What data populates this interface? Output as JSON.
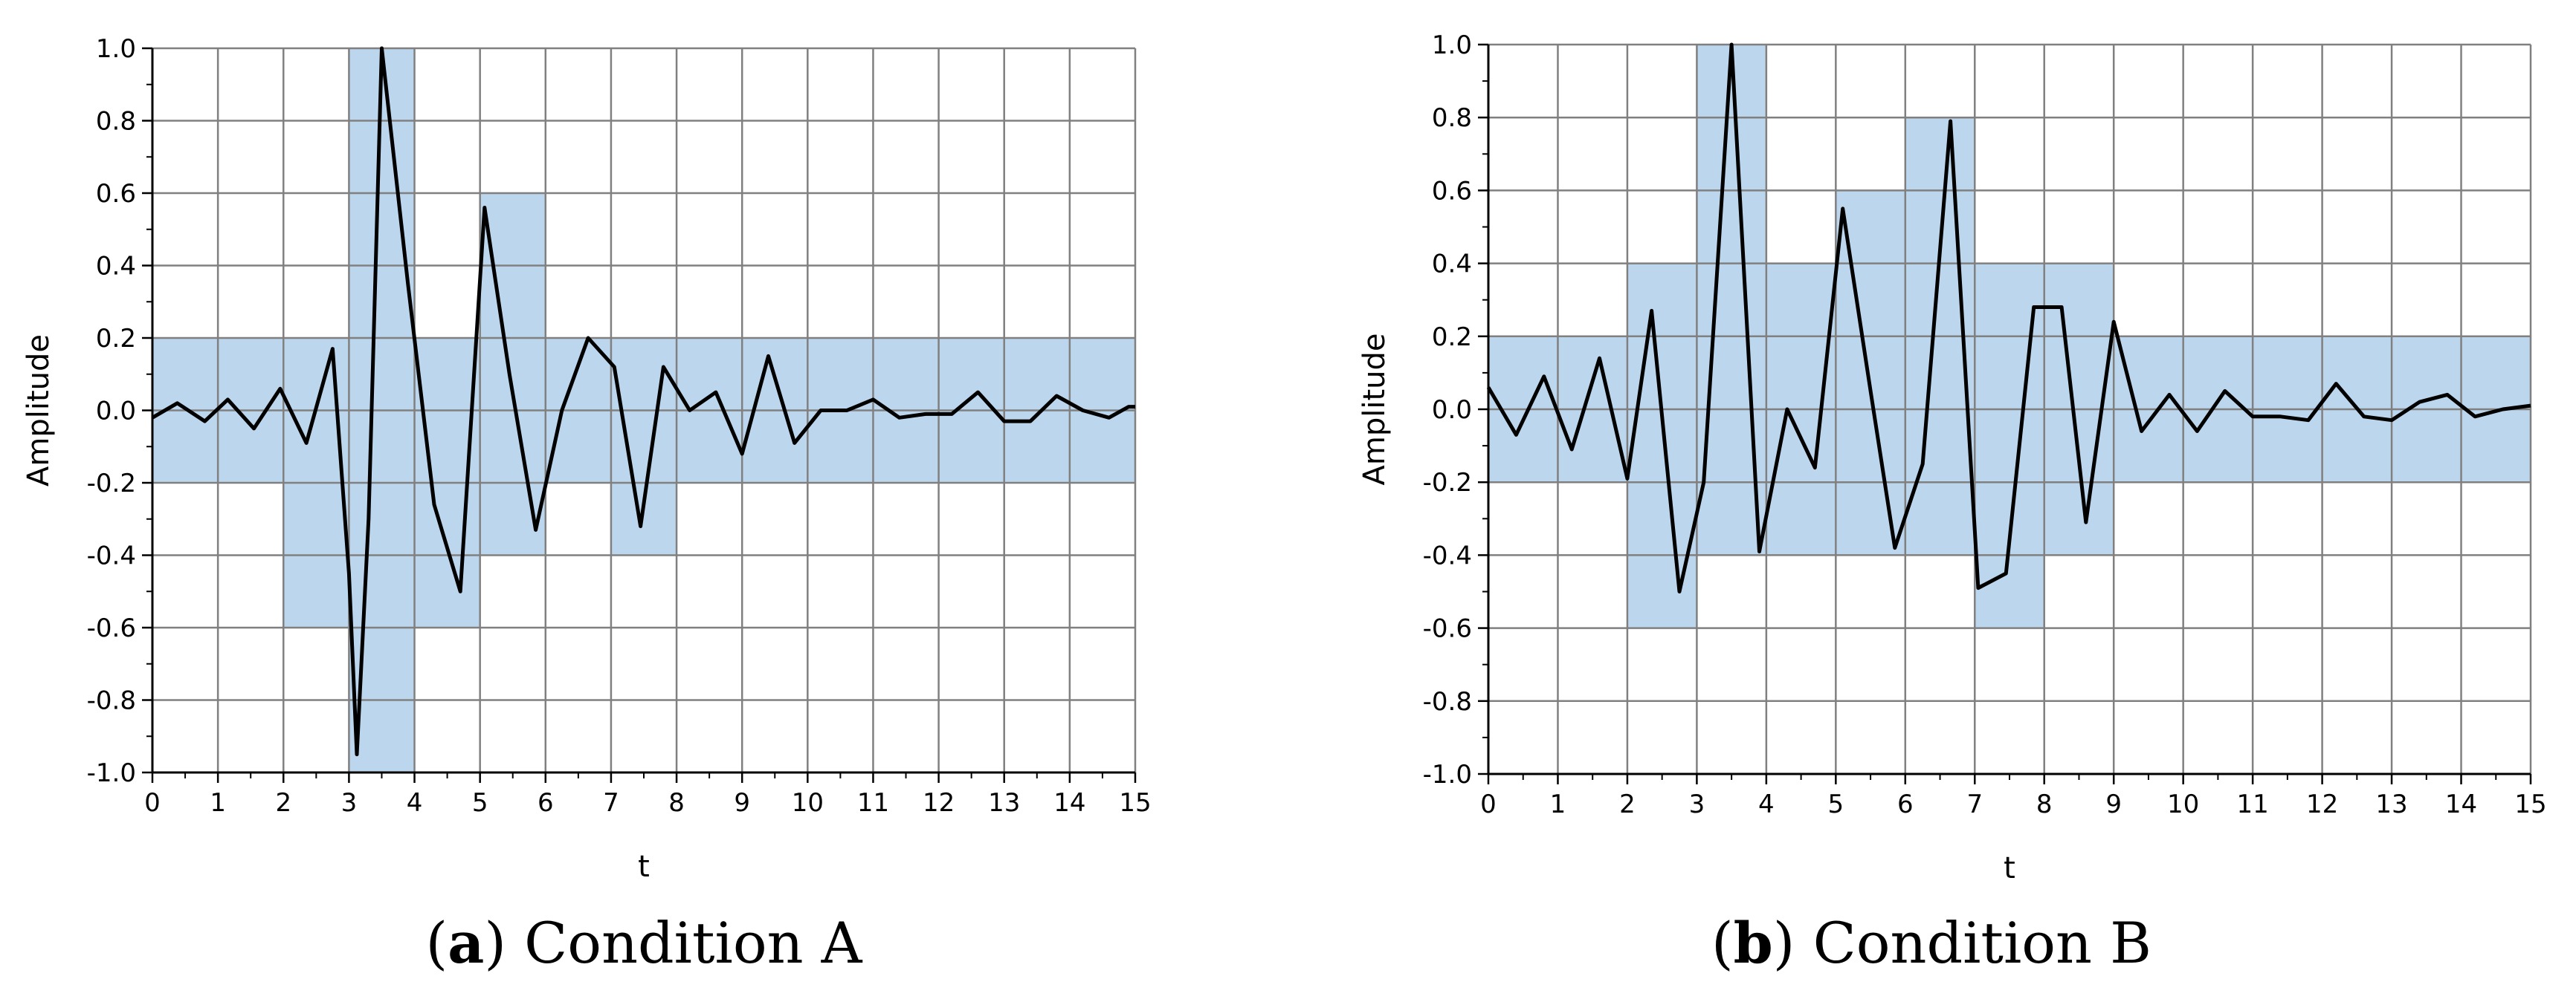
{
  "chart_data": [
    {
      "type": "line",
      "caption": {
        "letter": "a",
        "text": "Condition A"
      },
      "xlabel": "t",
      "ylabel": "Amplitude",
      "xlim": [
        0,
        15
      ],
      "ylim": [
        -1.0,
        1.0
      ],
      "x_ticks": [
        "0",
        "1",
        "2",
        "3",
        "4",
        "5",
        "6",
        "7",
        "8",
        "9",
        "10",
        "11",
        "12",
        "13",
        "14",
        "15"
      ],
      "y_ticks": [
        "1.0",
        "0.8",
        "0.6",
        "0.4",
        "0.2",
        "0.0",
        "-0.2",
        "-0.4",
        "-0.6",
        "-0.8",
        "-1.0"
      ],
      "grid": true,
      "colors": {
        "line": "#000000",
        "highlight": "#bcd6ee",
        "grid": "#808080"
      },
      "highlight_cells": [
        {
          "x": [
            0,
            2
          ],
          "y": [
            -0.2,
            0.2
          ]
        },
        {
          "x": [
            2,
            3
          ],
          "y": [
            -0.6,
            0.2
          ]
        },
        {
          "x": [
            3,
            4
          ],
          "y": [
            -1.0,
            1.0
          ]
        },
        {
          "x": [
            4,
            5
          ],
          "y": [
            -0.6,
            0.2
          ]
        },
        {
          "x": [
            5,
            6
          ],
          "y": [
            -0.4,
            0.6
          ]
        },
        {
          "x": [
            6,
            7
          ],
          "y": [
            -0.2,
            0.2
          ]
        },
        {
          "x": [
            7,
            8
          ],
          "y": [
            -0.4,
            0.2
          ]
        },
        {
          "x": [
            8,
            15
          ],
          "y": [
            -0.2,
            0.2
          ]
        }
      ],
      "series": [
        {
          "x": [
            0,
            0.38,
            0.8,
            1.15,
            1.55,
            1.95,
            2.35,
            2.75,
            3.0,
            3.12,
            3.3,
            3.5,
            3.9,
            4.3,
            4.7,
            5.07,
            5.45,
            5.85,
            6.25,
            6.65,
            7.05,
            7.45,
            7.8,
            8.2,
            8.6,
            9.0,
            9.4,
            9.8,
            10.2,
            10.6,
            11.0,
            11.4,
            11.8,
            12.2,
            12.6,
            13.0,
            13.4,
            13.8,
            14.2,
            14.6,
            14.9,
            15.0
          ],
          "y": [
            -0.02,
            0.02,
            -0.03,
            0.03,
            -0.05,
            0.06,
            -0.09,
            0.17,
            -0.45,
            -0.95,
            -0.3,
            1.0,
            0.35,
            -0.26,
            -0.5,
            0.56,
            0.1,
            -0.33,
            0.0,
            0.2,
            0.12,
            -0.32,
            0.12,
            0.0,
            0.05,
            -0.12,
            0.15,
            -0.09,
            0.0,
            0.0,
            0.03,
            -0.02,
            -0.01,
            -0.01,
            0.05,
            -0.03,
            -0.03,
            0.04,
            0.0,
            -0.02,
            0.01,
            0.01
          ]
        }
      ]
    },
    {
      "type": "line",
      "caption": {
        "letter": "b",
        "text": "Condition B"
      },
      "xlabel": "t",
      "ylabel": "Amplitude",
      "xlim": [
        0,
        15
      ],
      "ylim": [
        -1.0,
        1.0
      ],
      "x_ticks": [
        "0",
        "1",
        "2",
        "3",
        "4",
        "5",
        "6",
        "7",
        "8",
        "9",
        "10",
        "11",
        "12",
        "13",
        "14",
        "15"
      ],
      "y_ticks": [
        "1.0",
        "0.8",
        "0.6",
        "0.4",
        "0.2",
        "0.0",
        "-0.2",
        "-0.4",
        "-0.6",
        "-0.8",
        "-1.0"
      ],
      "grid": true,
      "colors": {
        "line": "#000000",
        "highlight": "#bcd6ee",
        "grid": "#808080"
      },
      "highlight_cells": [
        {
          "x": [
            0,
            2
          ],
          "y": [
            -0.2,
            0.2
          ]
        },
        {
          "x": [
            2,
            3
          ],
          "y": [
            -0.6,
            0.4
          ]
        },
        {
          "x": [
            3,
            4
          ],
          "y": [
            -0.4,
            1.0
          ]
        },
        {
          "x": [
            4,
            5
          ],
          "y": [
            -0.4,
            0.4
          ]
        },
        {
          "x": [
            5,
            6
          ],
          "y": [
            -0.4,
            0.6
          ]
        },
        {
          "x": [
            6,
            7
          ],
          "y": [
            -0.4,
            0.8
          ]
        },
        {
          "x": [
            7,
            8
          ],
          "y": [
            -0.6,
            0.4
          ]
        },
        {
          "x": [
            8,
            9
          ],
          "y": [
            -0.4,
            0.4
          ]
        },
        {
          "x": [
            9,
            15
          ],
          "y": [
            -0.2,
            0.2
          ]
        }
      ],
      "series": [
        {
          "x": [
            0,
            0.4,
            0.8,
            1.2,
            1.6,
            2.0,
            2.35,
            2.75,
            3.1,
            3.5,
            3.9,
            4.3,
            4.7,
            5.1,
            5.5,
            5.85,
            6.25,
            6.65,
            7.05,
            7.45,
            7.85,
            8.25,
            8.6,
            9.0,
            9.4,
            9.8,
            10.2,
            10.6,
            11.0,
            11.4,
            11.8,
            12.2,
            12.6,
            13.0,
            13.4,
            13.8,
            14.2,
            14.6,
            15.0
          ],
          "y": [
            0.06,
            -0.07,
            0.09,
            -0.11,
            0.14,
            -0.19,
            0.27,
            -0.5,
            -0.2,
            1.0,
            -0.39,
            0.0,
            -0.16,
            0.55,
            0.05,
            -0.38,
            -0.15,
            0.79,
            -0.49,
            -0.45,
            0.28,
            0.28,
            -0.31,
            0.24,
            -0.06,
            0.04,
            -0.06,
            0.05,
            -0.02,
            -0.02,
            -0.03,
            0.07,
            -0.02,
            -0.03,
            0.02,
            0.04,
            -0.02,
            0.0,
            0.01
          ]
        }
      ]
    }
  ]
}
